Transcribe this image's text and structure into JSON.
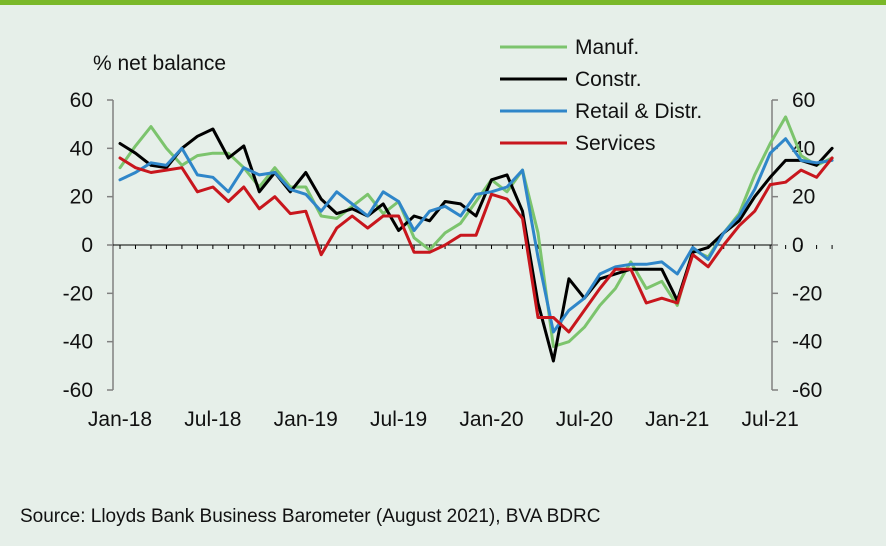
{
  "chart_data": {
    "type": "line",
    "ylabel": "% net balance",
    "ylim": [
      -60,
      60
    ],
    "yticks": [
      60,
      40,
      20,
      0,
      -20,
      -40,
      -60
    ],
    "ytick_labels": [
      "60",
      "40",
      "20",
      "0",
      "-20",
      "-40",
      "-60"
    ],
    "x_tick_labels": [
      "Jan-18",
      "Jul-18",
      "Jan-19",
      "Jul-19",
      "Jan-20",
      "Jul-20",
      "Jan-21",
      "Jul-21"
    ],
    "x_tick_months": [
      0,
      6,
      12,
      18,
      24,
      30,
      36,
      42
    ],
    "legend_placement": "top-center",
    "grid": false,
    "series": [
      {
        "name": "Manuf.",
        "color": "#7cc46d",
        "values": [
          32,
          41,
          49,
          40,
          33,
          37,
          38,
          38,
          32,
          24,
          32,
          24,
          24,
          12,
          11,
          16,
          21,
          13,
          18,
          3,
          -2,
          5,
          9,
          18,
          27,
          22,
          31,
          5,
          -42,
          -40,
          -34,
          -25,
          -18,
          -7,
          -18,
          -15,
          -25,
          -2,
          -5,
          5,
          13,
          29,
          42,
          53,
          37,
          33,
          36
        ]
      },
      {
        "name": "Constr.",
        "color": "#000000",
        "values": [
          42,
          38,
          33,
          32,
          40,
          45,
          48,
          36,
          41,
          22,
          30,
          22,
          30,
          19,
          13,
          15,
          12,
          17,
          6,
          12,
          10,
          18,
          17,
          12,
          27,
          29,
          14,
          -24,
          -48,
          -14,
          -22,
          -14,
          -12,
          -10,
          -10,
          -10,
          -23,
          -3,
          -1,
          5,
          10,
          20,
          28,
          35,
          35,
          33,
          40
        ]
      },
      {
        "name": "Retail & Distr.",
        "color": "#2f86c9",
        "values": [
          27,
          30,
          34,
          33,
          40,
          29,
          28,
          22,
          32,
          29,
          30,
          23,
          21,
          14,
          22,
          17,
          12,
          22,
          18,
          6,
          14,
          16,
          12,
          21,
          22,
          24,
          31,
          -5,
          -36,
          -27,
          -22,
          -12,
          -9,
          -8,
          -8,
          -7,
          -12,
          -1,
          -6,
          5,
          12,
          23,
          38,
          44,
          35,
          34,
          35
        ]
      },
      {
        "name": "Services",
        "color": "#c8161d",
        "values": [
          36,
          32,
          30,
          31,
          32,
          22,
          24,
          18,
          24,
          15,
          20,
          13,
          14,
          -4,
          7,
          12,
          7,
          12,
          12,
          -3,
          -3,
          0,
          4,
          4,
          21,
          19,
          11,
          -30,
          -30,
          -36,
          -27,
          -18,
          -10,
          -10,
          -24,
          -22,
          -24,
          -4,
          -9,
          0,
          8,
          14,
          25,
          26,
          31,
          28,
          36
        ]
      }
    ]
  },
  "source_text": "Source: Lloyds Bank Business Barometer (August 2021), BVA BDRC"
}
